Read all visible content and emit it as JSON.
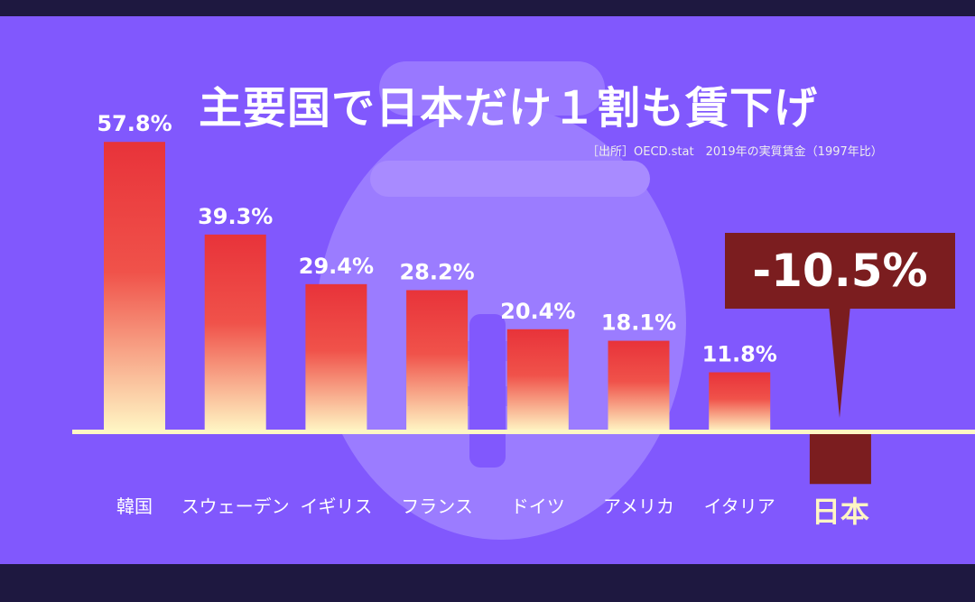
{
  "chart_data": {
    "type": "bar",
    "title": "主要国で日本だけ１割も賃下げ",
    "source": "［出所］OECD.stat　2019年の実質賃金（1997年比）",
    "categories": [
      "韓国",
      "スウェーデン",
      "イギリス",
      "フランス",
      "ドイツ",
      "アメリカ",
      "イタリア",
      "日本"
    ],
    "values": [
      57.8,
      39.3,
      29.4,
      28.2,
      20.4,
      18.1,
      11.8,
      -10.5
    ],
    "data_labels": [
      "57.8%",
      "39.3%",
      "29.4%",
      "28.2%",
      "20.4%",
      "18.1%",
      "11.8%",
      ""
    ],
    "callout": "-10.5%",
    "highlight": "日本",
    "colors": {
      "background": "#8158fd",
      "bar_top": "#e8333a",
      "bar_bottom": "#fff6c4",
      "highlight_bar": "#7b1d1f",
      "baseline": "#fff6c4"
    },
    "background_icon": "money-bag-yen-icon"
  }
}
